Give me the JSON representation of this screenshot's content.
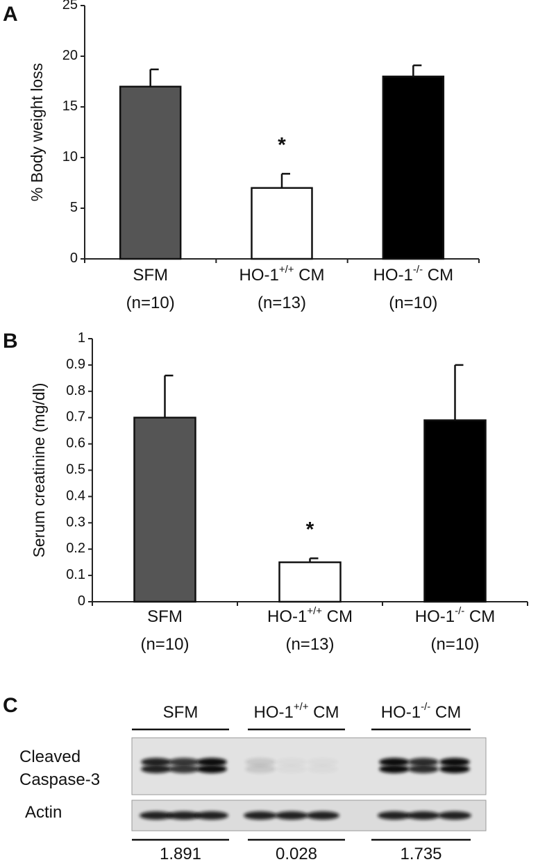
{
  "chart_data": [
    {
      "type": "bar",
      "panel": "A",
      "y_label": "% Body weight loss",
      "categories": [
        "SFM",
        "HO-1+/+ CM",
        "HO-1-/- CM"
      ],
      "category_notes": [
        "(n=10)",
        "(n=13)",
        "(n=10)"
      ],
      "values": [
        17,
        7,
        18
      ],
      "errors": [
        1.7,
        1.4,
        1.1
      ],
      "colors": [
        "#555555",
        "#ffffff",
        "#000000"
      ],
      "significance": [
        null,
        "*",
        null
      ],
      "ylim": [
        0,
        25
      ],
      "yticks": [
        0,
        5,
        10,
        15,
        20,
        25
      ]
    },
    {
      "type": "bar",
      "panel": "B",
      "y_label": "Serum creatinine (mg/dl)",
      "categories": [
        "SFM",
        "HO-1+/+ CM",
        "HO-1-/- CM"
      ],
      "category_notes": [
        "(n=10)",
        "(n=13)",
        "(n=10)"
      ],
      "values": [
        0.7,
        0.15,
        0.69
      ],
      "errors": [
        0.16,
        0.015,
        0.21
      ],
      "colors": [
        "#555555",
        "#ffffff",
        "#000000"
      ],
      "significance": [
        null,
        "*",
        null
      ],
      "ylim": [
        0,
        1
      ],
      "yticks": [
        0,
        0.1,
        0.2,
        0.3,
        0.4,
        0.5,
        0.6,
        0.7,
        0.8,
        0.9,
        1
      ]
    }
  ],
  "blot": {
    "panel": "C",
    "groups": [
      "SFM",
      "HO-1+/+ CM",
      "HO-1-/- CM"
    ],
    "rows": [
      [
        "Cleaved",
        "Caspase-3"
      ],
      [
        "Actin"
      ]
    ],
    "quantification": [
      1.891,
      0.028,
      1.735
    ]
  }
}
